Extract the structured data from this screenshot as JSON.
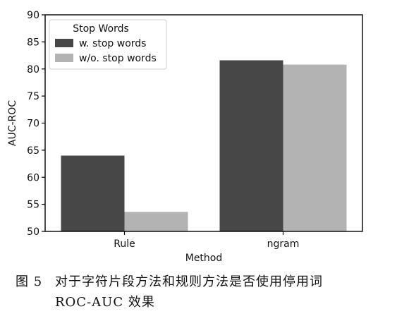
{
  "chart_data": {
    "type": "bar",
    "xlabel": "Method",
    "ylabel": "AUC-ROC",
    "categories": [
      "Rule",
      "ngram"
    ],
    "ylim": [
      50,
      90
    ],
    "yticks": [
      50,
      55,
      60,
      65,
      70,
      75,
      80,
      85,
      90
    ],
    "grid": false,
    "legend": {
      "title": "Stop Words",
      "placement": "top-left"
    },
    "series": [
      {
        "name": "w. stop words",
        "values": [
          64.0,
          81.6
        ],
        "color": "#474747"
      },
      {
        "name": "w/o. stop words",
        "values": [
          53.6,
          80.8
        ],
        "color": "#b3b3b3"
      }
    ]
  },
  "caption": {
    "label": "图 5",
    "line1": "对于字符片段方法和规则方法是否使用停用词",
    "line2": "ROC-AUC 效果"
  }
}
